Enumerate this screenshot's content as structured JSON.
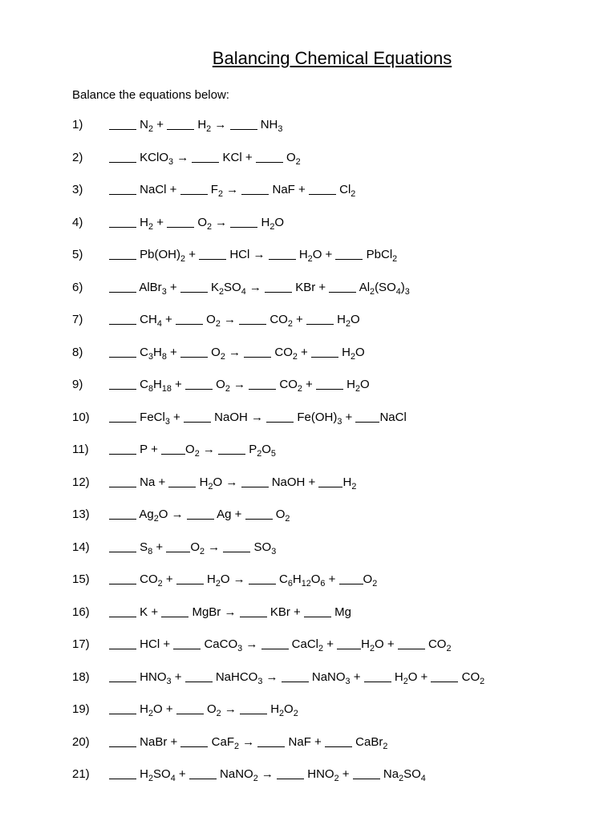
{
  "title": "Balancing Chemical Equations",
  "instruction": "Balance the equations below:",
  "colors": {
    "background": "#ffffff",
    "text": "#000000",
    "underline": "#000000"
  },
  "typography": {
    "title_fontsize": 22,
    "body_fontsize": 15,
    "font_family": "Arial"
  },
  "arrow_glyph": "→",
  "plus_glyph": "+",
  "blank_widths": {
    "normal": 34,
    "small": 30
  },
  "equations": [
    {
      "n": "1)",
      "terms": [
        [
          "N",
          "2"
        ],
        [
          "H",
          "2"
        ],
        "arrow",
        [
          "NH",
          "3"
        ]
      ]
    },
    {
      "n": "2)",
      "terms": [
        [
          "KClO",
          "3"
        ],
        "arrow",
        [
          "KCl",
          ""
        ],
        [
          "O",
          "2"
        ]
      ]
    },
    {
      "n": "3)",
      "terms": [
        [
          "NaCl",
          ""
        ],
        [
          "F",
          "2"
        ],
        "arrow",
        [
          "NaF",
          ""
        ],
        [
          "Cl",
          "2"
        ]
      ]
    },
    {
      "n": "4)",
      "terms": [
        [
          "H",
          "2"
        ],
        [
          "O",
          "2"
        ],
        "arrow",
        [
          "H",
          "2",
          "O"
        ]
      ]
    },
    {
      "n": "5)",
      "terms": [
        [
          "Pb(OH)",
          "2"
        ],
        [
          "HCl",
          ""
        ],
        "arrow",
        [
          "H",
          "2",
          "O"
        ],
        [
          "PbCl",
          "2"
        ]
      ]
    },
    {
      "n": "6)",
      "terms": [
        [
          "AlBr",
          "3"
        ],
        [
          "K",
          "2",
          "SO",
          "4"
        ],
        "arrow",
        [
          "KBr",
          ""
        ],
        [
          "Al",
          "2",
          "(SO",
          "4",
          ")",
          "3"
        ]
      ]
    },
    {
      "n": "7)",
      "terms": [
        [
          "CH",
          "4"
        ],
        [
          "O",
          "2"
        ],
        "arrow",
        [
          "CO",
          "2"
        ],
        [
          "H",
          "2",
          "O"
        ]
      ]
    },
    {
      "n": "8)",
      "terms": [
        [
          "C",
          "3",
          "H",
          "8"
        ],
        [
          "O",
          "2"
        ],
        "arrow",
        [
          "CO",
          "2"
        ],
        [
          "H",
          "2",
          "O"
        ]
      ]
    },
    {
      "n": "9)",
      "terms": [
        [
          "C",
          "8",
          "H",
          "18"
        ],
        [
          "O",
          "2"
        ],
        "arrow",
        [
          "CO",
          "2"
        ],
        [
          "H",
          "2",
          "O"
        ]
      ]
    },
    {
      "n": "10)",
      "terms": [
        [
          "FeCl",
          "3"
        ],
        [
          "NaOH",
          ""
        ],
        "arrow",
        [
          "Fe(OH)",
          "3"
        ],
        [
          "NaCl",
          ""
        ]
      ],
      "tight_last": true
    },
    {
      "n": "11)",
      "terms": [
        [
          "P",
          ""
        ],
        [
          "O",
          "2"
        ],
        "arrow",
        [
          "P",
          "2",
          "O",
          "5"
        ]
      ],
      "tight": [
        1,
        3
      ]
    },
    {
      "n": "12)",
      "terms": [
        [
          "Na",
          ""
        ],
        [
          "H",
          "2",
          "O"
        ],
        "arrow",
        [
          "NaOH",
          ""
        ],
        [
          "H",
          "2"
        ]
      ],
      "tight": [
        3
      ]
    },
    {
      "n": "13)",
      "terms": [
        [
          "Ag",
          "2",
          "O"
        ],
        "arrow",
        [
          "Ag",
          ""
        ],
        [
          "O",
          "2"
        ]
      ],
      "tight": [
        3
      ]
    },
    {
      "n": "14)",
      "terms": [
        [
          "S",
          "8"
        ],
        [
          "O",
          "2"
        ],
        "arrow",
        [
          "SO",
          "3"
        ]
      ],
      "tight": [
        1
      ]
    },
    {
      "n": "15)",
      "terms": [
        [
          "CO",
          "2"
        ],
        [
          "H",
          "2",
          "O"
        ],
        "arrow",
        [
          "C",
          "6",
          "H",
          "12",
          "O",
          "6"
        ],
        [
          "O",
          "2"
        ]
      ],
      "tight": [
        3
      ]
    },
    {
      "n": "16)",
      "terms": [
        [
          "K",
          ""
        ],
        [
          "MgBr",
          ""
        ],
        "arrow",
        [
          "KBr",
          ""
        ],
        [
          "Mg",
          ""
        ]
      ]
    },
    {
      "n": "17)",
      "terms": [
        [
          "HCl",
          ""
        ],
        [
          "CaCO",
          "3"
        ],
        "arrow",
        [
          "CaCl",
          "2"
        ],
        [
          "H",
          "2",
          "O"
        ],
        [
          "CO",
          "2"
        ]
      ],
      "tight": [
        3
      ]
    },
    {
      "n": "18)",
      "terms": [
        [
          "HNO",
          "3"
        ],
        [
          "NaHCO",
          "3"
        ],
        "arrow",
        [
          "NaNO",
          "3"
        ],
        [
          "H",
          "2",
          "O"
        ],
        [
          "CO",
          "2"
        ]
      ]
    },
    {
      "n": "19)",
      "terms": [
        [
          "H",
          "2",
          "O"
        ],
        [
          "O",
          "2"
        ],
        "arrow",
        [
          "H",
          "2",
          "O",
          "2"
        ]
      ]
    },
    {
      "n": "20)",
      "terms": [
        [
          "NaBr",
          ""
        ],
        [
          "CaF",
          "2"
        ],
        "arrow",
        [
          "NaF",
          ""
        ],
        [
          "CaBr",
          "2"
        ]
      ]
    },
    {
      "n": "21)",
      "terms": [
        [
          "H",
          "2",
          "SO",
          "4"
        ],
        [
          "NaNO",
          "2"
        ],
        "arrow",
        [
          "HNO",
          "2"
        ],
        [
          "Na",
          "2",
          "SO",
          "4"
        ]
      ]
    }
  ]
}
